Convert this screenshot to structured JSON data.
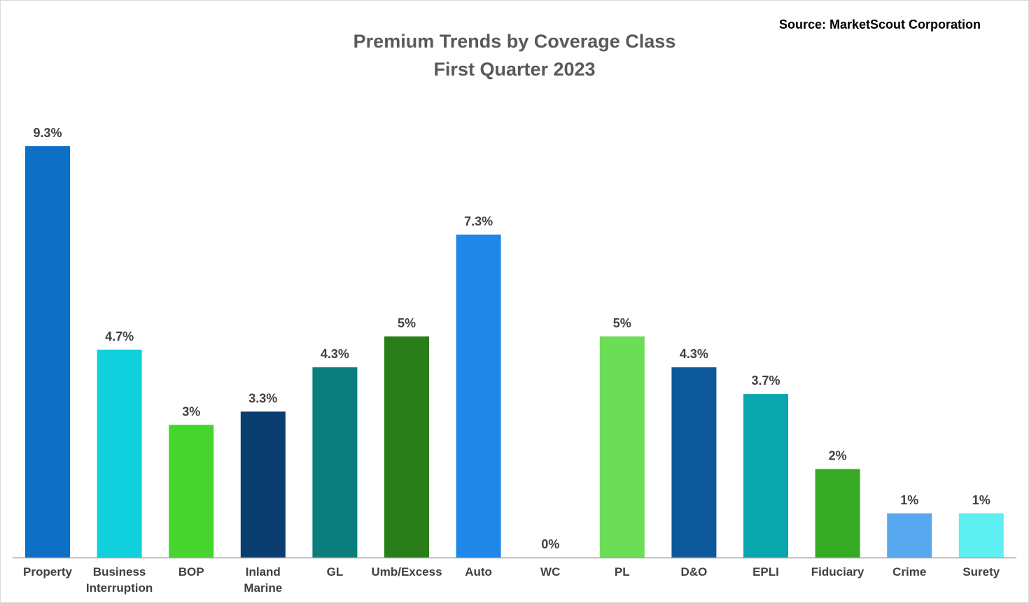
{
  "chart_data": {
    "type": "bar",
    "title": "Premium Trends by Coverage Class",
    "subtitle": "First Quarter 2023",
    "source": "Source: MarketScout  Corporation",
    "categories": [
      [
        "Property"
      ],
      [
        "Business",
        "Interruption"
      ],
      [
        "BOP"
      ],
      [
        "Inland",
        "Marine"
      ],
      [
        "GL"
      ],
      [
        "Umb/Excess"
      ],
      [
        "Auto"
      ],
      [
        "WC"
      ],
      [
        "PL"
      ],
      [
        "D&O"
      ],
      [
        "EPLI"
      ],
      [
        "Fiduciary"
      ],
      [
        "Crime"
      ],
      [
        "Surety"
      ]
    ],
    "values": [
      9.3,
      4.7,
      3,
      3.3,
      4.3,
      5,
      7.3,
      0,
      5,
      4.3,
      3.7,
      2,
      1,
      1
    ],
    "value_labels": [
      "9.3%",
      "4.7%",
      "3%",
      "3.3%",
      "4.3%",
      "5%",
      "7.3%",
      "0%",
      "5%",
      "4.3%",
      "3.7%",
      "2%",
      "1%",
      "1%"
    ],
    "colors": [
      "#0e6fc7",
      "#0fd0dc",
      "#45d52e",
      "#0b3e70",
      "#0b7d7d",
      "#2a7e1a",
      "#1f87e8",
      "#1f87e8",
      "#6bdd56",
      "#0d589b",
      "#0aa6ad",
      "#35aa22",
      "#58a8f0",
      "#5deff2"
    ],
    "xlabel": "",
    "ylabel": "",
    "ylim": [
      0,
      9.3
    ],
    "grid": false,
    "legend": "none"
  }
}
